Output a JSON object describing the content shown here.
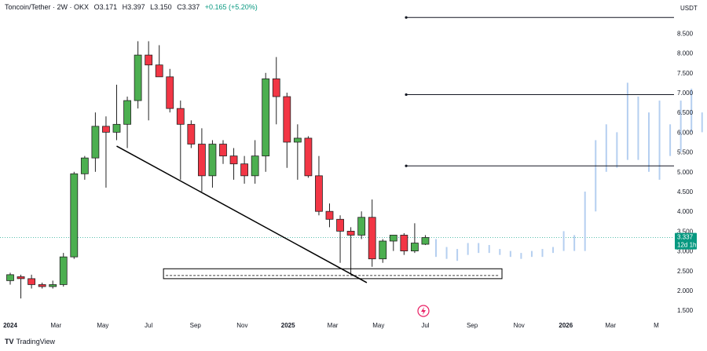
{
  "header": {
    "symbol": "Toncoin/Tether · 2W · OKX",
    "open": "O3.171",
    "high": "H3.397",
    "low": "L3.150",
    "close": "C3.337",
    "change": "+0.165 (+5.20%)"
  },
  "footer": {
    "logo": "TV",
    "brand": "TradingView"
  },
  "chart_data": {
    "type": "candlestick",
    "currency_label": "USDT",
    "y_ticks": [
      "8.500",
      "8.000",
      "7.500",
      "7.000",
      "6.500",
      "6.000",
      "5.500",
      "5.000",
      "4.500",
      "4.000",
      "3.500",
      "3.000",
      "2.500",
      "2.000",
      "1.500"
    ],
    "x_ticks": [
      {
        "label": "2024",
        "bold": true,
        "t": 0
      },
      {
        "label": "Mar",
        "bold": false,
        "t": 4.3
      },
      {
        "label": "May",
        "bold": false,
        "t": 8.7
      },
      {
        "label": "Jul",
        "bold": false,
        "t": 13.0
      },
      {
        "label": "Sep",
        "bold": false,
        "t": 17.4
      },
      {
        "label": "Nov",
        "bold": false,
        "t": 21.8
      },
      {
        "label": "2025",
        "bold": true,
        "t": 26.1
      },
      {
        "label": "Mar",
        "bold": false,
        "t": 30.3
      },
      {
        "label": "May",
        "bold": false,
        "t": 34.6
      },
      {
        "label": "Jul",
        "bold": false,
        "t": 39.0
      },
      {
        "label": "Sep",
        "bold": false,
        "t": 43.4
      },
      {
        "label": "Nov",
        "bold": false,
        "t": 47.8
      },
      {
        "label": "2026",
        "bold": true,
        "t": 52.2
      },
      {
        "label": "Mar",
        "bold": false,
        "t": 56.4
      },
      {
        "label": "M",
        "bold": false,
        "t": 60.7
      }
    ],
    "current_price": "3.337",
    "countdown": "12d 1h",
    "candles": [
      [
        2.25,
        2.45,
        2.15,
        2.4
      ],
      [
        2.35,
        2.4,
        1.8,
        2.3
      ],
      [
        2.3,
        2.4,
        2.05,
        2.15
      ],
      [
        2.15,
        2.2,
        2.05,
        2.1
      ],
      [
        2.1,
        2.25,
        2.05,
        2.15
      ],
      [
        2.15,
        2.95,
        2.1,
        2.85
      ],
      [
        2.85,
        5.0,
        2.8,
        4.95
      ],
      [
        4.95,
        5.4,
        4.8,
        5.35
      ],
      [
        5.35,
        6.5,
        5.0,
        6.15
      ],
      [
        6.15,
        6.4,
        4.6,
        6.0
      ],
      [
        6.0,
        7.2,
        5.8,
        6.2
      ],
      [
        6.2,
        6.9,
        5.6,
        6.8
      ],
      [
        6.8,
        8.3,
        6.6,
        7.95
      ],
      [
        7.95,
        8.3,
        6.3,
        7.7
      ],
      [
        7.7,
        8.2,
        7.4,
        7.4
      ],
      [
        7.4,
        7.6,
        6.5,
        6.6
      ],
      [
        6.6,
        6.8,
        4.8,
        6.2
      ],
      [
        6.2,
        6.3,
        5.6,
        5.7
      ],
      [
        5.7,
        6.1,
        4.5,
        4.9
      ],
      [
        4.9,
        5.8,
        4.6,
        5.7
      ],
      [
        5.7,
        5.8,
        5.2,
        5.4
      ],
      [
        5.4,
        5.6,
        4.8,
        5.2
      ],
      [
        5.2,
        5.4,
        4.7,
        4.9
      ],
      [
        4.9,
        5.8,
        4.7,
        5.4
      ],
      [
        5.4,
        7.5,
        5.0,
        7.35
      ],
      [
        7.35,
        7.9,
        6.2,
        6.9
      ],
      [
        6.9,
        7.0,
        5.1,
        5.75
      ],
      [
        5.75,
        6.2,
        4.8,
        5.85
      ],
      [
        5.85,
        5.9,
        4.85,
        4.9
      ],
      [
        4.9,
        5.4,
        3.9,
        4.0
      ],
      [
        4.0,
        4.2,
        3.6,
        3.8
      ],
      [
        3.8,
        3.9,
        2.7,
        3.5
      ],
      [
        3.5,
        3.6,
        2.4,
        3.4
      ],
      [
        3.4,
        4.0,
        3.3,
        3.85
      ],
      [
        3.85,
        4.3,
        2.6,
        2.8
      ],
      [
        2.8,
        3.3,
        2.7,
        3.25
      ],
      [
        3.25,
        3.4,
        3.0,
        3.4
      ],
      [
        3.4,
        3.45,
        2.9,
        3.0
      ],
      [
        3.0,
        3.7,
        2.95,
        3.2
      ],
      [
        3.17,
        3.4,
        3.15,
        3.34
      ]
    ],
    "projection": [
      [
        2.85,
        3.3
      ],
      [
        2.8,
        3.1
      ],
      [
        2.75,
        3.05
      ],
      [
        2.9,
        3.2
      ],
      [
        2.95,
        3.2
      ],
      [
        2.95,
        3.15
      ],
      [
        2.9,
        3.05
      ],
      [
        2.85,
        3.0
      ],
      [
        2.8,
        2.95
      ],
      [
        2.85,
        3.0
      ],
      [
        2.85,
        3.05
      ],
      [
        2.95,
        3.1
      ],
      [
        3.0,
        3.5
      ],
      [
        3.0,
        3.4
      ],
      [
        3.0,
        4.5
      ],
      [
        4.0,
        5.8
      ],
      [
        5.0,
        6.2
      ],
      [
        5.1,
        6.0
      ],
      [
        5.3,
        7.25
      ],
      [
        5.3,
        6.9
      ],
      [
        5.0,
        6.5
      ],
      [
        4.8,
        6.8
      ],
      [
        5.4,
        6.2
      ],
      [
        5.5,
        6.8
      ],
      [
        6.0,
        7.1
      ],
      [
        6.0,
        6.5
      ],
      [
        6.1,
        6.7
      ]
    ],
    "levels": [
      {
        "price": 5.15,
        "t_start": 37.2
      },
      {
        "price": 6.95,
        "t_start": 37.2
      },
      {
        "price": 8.9,
        "t_start": 37.2
      }
    ],
    "trendline": {
      "t1": 10,
      "p1": 5.65,
      "t2": 33.5,
      "p2": 2.2
    },
    "zone": {
      "t1": 14.4,
      "t2": 46.2,
      "p_top": 2.55,
      "p_bottom": 2.3,
      "p_mid": 2.38
    }
  }
}
